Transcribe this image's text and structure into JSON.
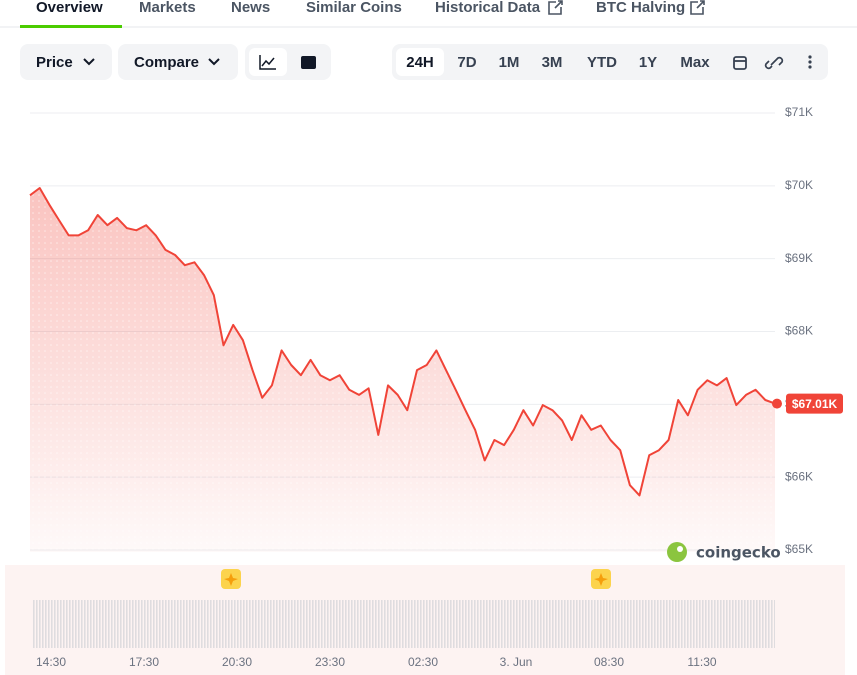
{
  "tabs": [
    "Overview",
    "Markets",
    "News",
    "Similar Coins",
    "Historical Data",
    "BTC Halving"
  ],
  "toolbar": {
    "price": "Price",
    "compare": "Compare",
    "ranges": [
      "24H",
      "7D",
      "1M",
      "3M",
      "YTD",
      "1Y",
      "Max"
    ]
  },
  "watermark": "coingecko",
  "chart_data": {
    "type": "line",
    "color": "#f04438",
    "values": [
      69.87,
      69.97,
      69.74,
      69.53,
      69.32,
      69.32,
      69.39,
      69.6,
      69.46,
      69.56,
      69.42,
      69.39,
      69.46,
      69.32,
      69.12,
      69.05,
      68.91,
      68.95,
      68.77,
      68.5,
      67.81,
      68.09,
      67.88,
      67.47,
      67.09,
      67.26,
      67.74,
      67.54,
      67.4,
      67.61,
      67.4,
      67.33,
      67.4,
      67.2,
      67.13,
      67.22,
      66.58,
      67.26,
      67.13,
      66.92,
      67.47,
      67.54,
      67.74,
      67.47,
      67.2,
      66.92,
      66.65,
      66.23,
      66.51,
      66.44,
      66.65,
      66.92,
      66.71,
      66.99,
      66.92,
      66.78,
      66.51,
      66.85,
      66.65,
      66.71,
      66.51,
      66.37,
      65.89,
      65.75,
      66.3,
      66.37,
      66.51,
      67.06,
      66.85,
      67.2,
      67.33,
      67.26,
      67.36,
      66.99,
      67.13,
      67.2,
      67.06,
      67.01
    ],
    "ylim": [
      65,
      71
    ],
    "yticks": [
      {
        "value": 65,
        "label": "$65K"
      },
      {
        "value": 66,
        "label": "$66K"
      },
      {
        "value": 67,
        "label": "$67K"
      },
      {
        "value": 68,
        "label": "$68K"
      },
      {
        "value": 69,
        "label": "$69K"
      },
      {
        "value": 70,
        "label": "$70K"
      },
      {
        "value": 71,
        "label": "$71K"
      }
    ],
    "time_labels": [
      "14:30",
      "17:30",
      "20:30",
      "23:30",
      "02:30",
      "3. Jun",
      "08:30",
      "11:30"
    ],
    "current_price": {
      "value": 67.01,
      "label": "$67.01K"
    },
    "grid": true
  }
}
